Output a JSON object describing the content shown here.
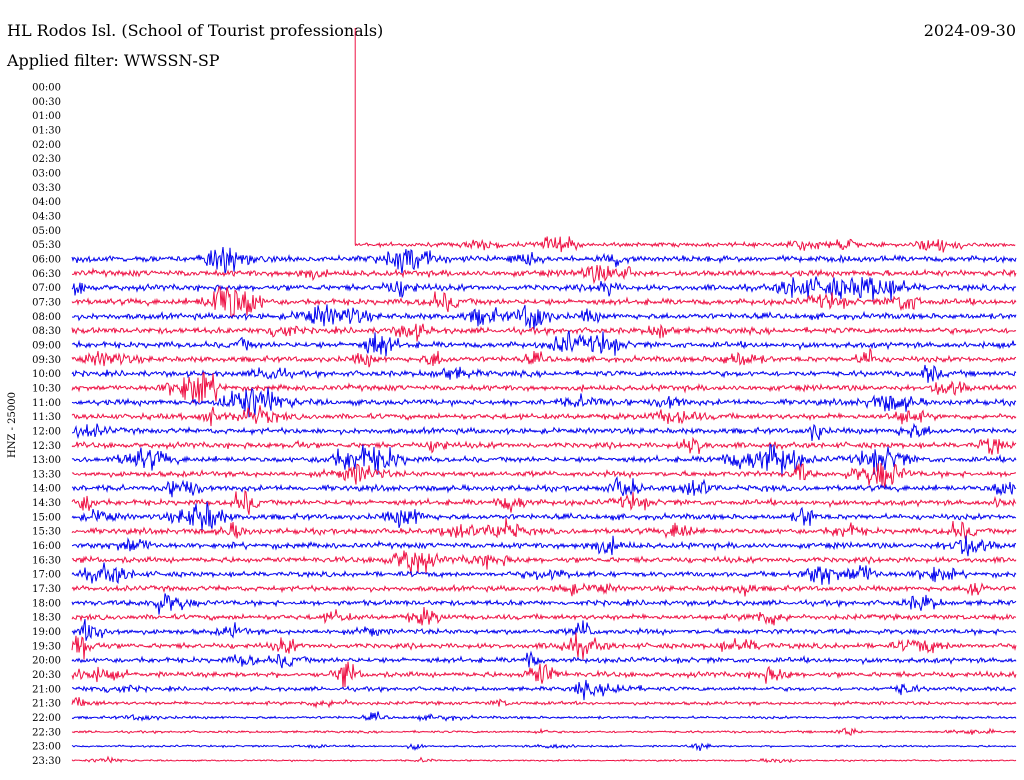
{
  "header": {
    "station": "HL Rodos Isl. (School of Tourist professionals)",
    "date": "2024-09-30",
    "filter": "Applied filter: WWSSN-SP"
  },
  "chart_data": {
    "type": "line",
    "title": "HL Rodos Isl. (School of Tourist professionals)",
    "subtitle": "Applied filter: WWSSN-SP",
    "date": "2024-09-30",
    "ylabel": "HNZ - 25000",
    "row_labels": [
      "00:00",
      "00:30",
      "01:00",
      "01:30",
      "02:00",
      "02:30",
      "03:00",
      "03:30",
      "04:00",
      "04:30",
      "05:00",
      "05:30",
      "06:00",
      "06:30",
      "07:00",
      "07:30",
      "08:00",
      "08:30",
      "09:00",
      "09:30",
      "10:00",
      "10:30",
      "11:00",
      "11:30",
      "12:00",
      "12:30",
      "13:00",
      "13:30",
      "14:00",
      "14:30",
      "15:00",
      "15:30",
      "16:00",
      "16:30",
      "17:00",
      "17:30",
      "18:00",
      "18:30",
      "19:00",
      "19:30",
      "20:00",
      "20:30",
      "21:00",
      "21:30",
      "22:00",
      "22:30",
      "23:00",
      "23:30"
    ],
    "data_start_time": "05:30",
    "data_start_fraction_of_row": 0.3,
    "row_noise_level": [
      0,
      0,
      0,
      0,
      0,
      0,
      0,
      0,
      0,
      0,
      0,
      0.55,
      0.8,
      0.8,
      0.8,
      0.8,
      0.8,
      0.8,
      0.8,
      0.75,
      0.75,
      0.75,
      0.75,
      0.75,
      0.75,
      0.75,
      0.75,
      0.75,
      0.75,
      0.75,
      0.75,
      0.75,
      0.75,
      0.75,
      0.7,
      0.7,
      0.7,
      0.7,
      0.7,
      0.7,
      0.7,
      0.7,
      0.55,
      0.45,
      0.35,
      0.3,
      0.25,
      0.2
    ],
    "series_colors": [
      "#0000ee",
      "#ee1144"
    ],
    "marker_color": "#ee1144",
    "grid": false
  }
}
